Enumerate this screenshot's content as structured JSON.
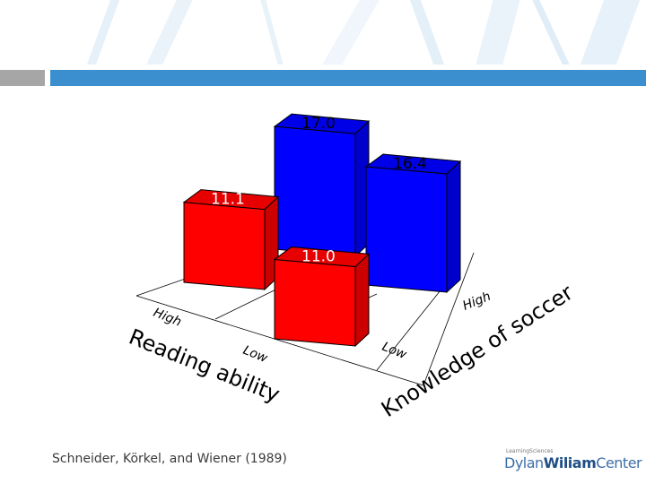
{
  "chart_data": {
    "type": "bar",
    "subtype": "3d-bar",
    "x_axis": {
      "label": "Reading ability",
      "categories": [
        "High",
        "Low"
      ]
    },
    "y_axis": {
      "label": "Knowledge of soccer",
      "categories": [
        "High",
        "Low"
      ]
    },
    "bars": [
      {
        "reading": "High",
        "knowledge": "High",
        "value": 17.0,
        "label": "17.0",
        "color": "#0000ff"
      },
      {
        "reading": "Low",
        "knowledge": "High",
        "value": 16.4,
        "label": "16.4",
        "color": "#0000ff"
      },
      {
        "reading": "High",
        "knowledge": "Low",
        "value": 11.1,
        "label": "11.1",
        "color": "#ff0000"
      },
      {
        "reading": "Low",
        "knowledge": "Low",
        "value": 11.0,
        "label": "11.0",
        "color": "#ff0000"
      }
    ]
  },
  "citation": "Schneider, Körkel, and Wiener (1989)",
  "logo": {
    "small": "LearningSciences",
    "dylan": "Dylan",
    "wiliam": "Wiliam",
    "center": "Center"
  },
  "colors": {
    "accent": "#3c8fcf",
    "header_stripes": "#9fcbe8"
  }
}
